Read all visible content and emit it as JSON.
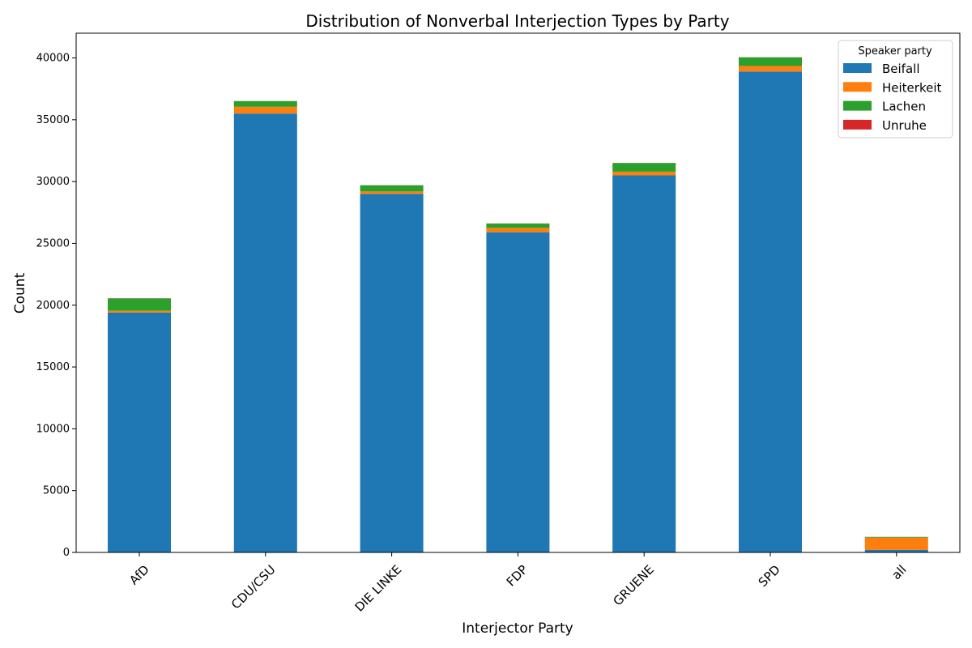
{
  "chart_data": {
    "type": "bar",
    "stacked": true,
    "title": "Distribution of Nonverbal Interjection Types by Party",
    "xlabel": "Interjector Party",
    "ylabel": "Count",
    "ylim": [
      0,
      42000
    ],
    "yticks": [
      0,
      5000,
      10000,
      15000,
      20000,
      25000,
      30000,
      35000,
      40000
    ],
    "ytick_labels": [
      "0",
      "5000",
      "10000",
      "15000",
      "20000",
      "25000",
      "30000",
      "35000",
      "40000"
    ],
    "categories": [
      "AfD",
      "CDU/CSU",
      "DIE LINKE",
      "FDP",
      "GRUENE",
      "SPD",
      "all"
    ],
    "series": [
      {
        "name": "Beifall",
        "color": "#1f77b4",
        "values": [
          19400,
          35500,
          29000,
          25900,
          30500,
          38900,
          200
        ]
      },
      {
        "name": "Heiterkeit",
        "color": "#ff7f0e",
        "values": [
          150,
          550,
          200,
          350,
          300,
          450,
          1000
        ]
      },
      {
        "name": "Lachen",
        "color": "#2ca02c",
        "values": [
          1000,
          450,
          500,
          350,
          700,
          700,
          50
        ]
      },
      {
        "name": "Unruhe",
        "color": "#d62728",
        "values": [
          10,
          10,
          10,
          10,
          10,
          10,
          10
        ]
      }
    ],
    "legend": {
      "title": "Speaker party",
      "position": "top-right"
    },
    "grid": false
  }
}
